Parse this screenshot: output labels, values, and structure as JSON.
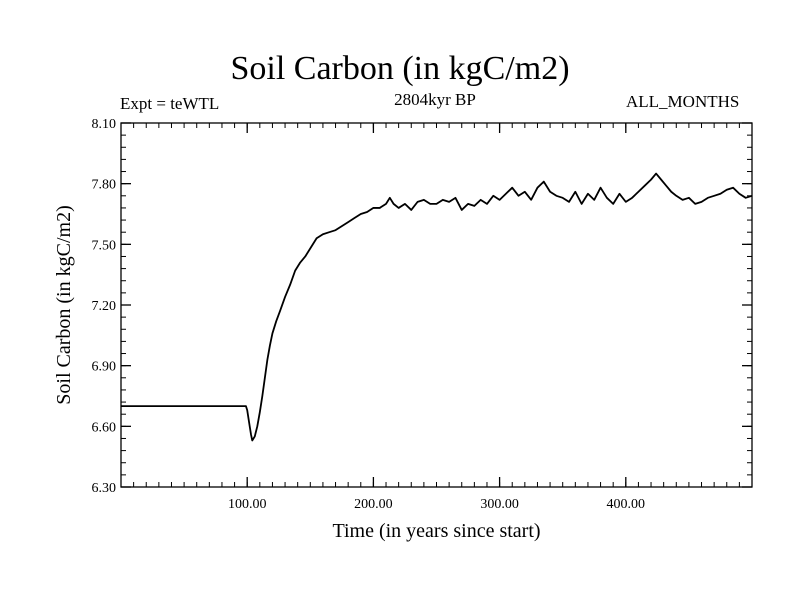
{
  "header": {
    "title": "Soil Carbon (in kgC/m2)",
    "subtitle": "2804kyr BP",
    "experiment": "Expt = teWTL",
    "period": "ALL_MONTHS"
  },
  "chart_data": {
    "type": "line",
    "title": "Soil Carbon (in kgC/m2)",
    "xlabel": "Time (in years since start)",
    "ylabel": "Soil Carbon (in kgC/m2)",
    "xlim": [
      0,
      500
    ],
    "ylim": [
      6.3,
      8.1
    ],
    "x_ticks": [
      100,
      200,
      300,
      400
    ],
    "x_tick_labels": [
      "100.00",
      "200.00",
      "300.00",
      "400.00"
    ],
    "y_ticks": [
      6.3,
      6.6,
      6.9,
      7.2,
      7.5,
      7.8,
      8.1
    ],
    "y_tick_labels": [
      "6.30",
      "6.60",
      "6.90",
      "7.20",
      "7.50",
      "7.80",
      "8.10"
    ],
    "grid": false,
    "series": [
      {
        "name": "Soil Carbon",
        "color": "#000000",
        "x": [
          0,
          20,
          40,
          60,
          80,
          99,
          100,
          101,
          102,
          103,
          104,
          106,
          108,
          110,
          112,
          114,
          116,
          118,
          120,
          123,
          126,
          130,
          134,
          138,
          142,
          146,
          150,
          155,
          160,
          165,
          170,
          175,
          180,
          185,
          190,
          195,
          200,
          205,
          210,
          213,
          216,
          220,
          225,
          230,
          235,
          240,
          245,
          250,
          255,
          260,
          265,
          270,
          275,
          280,
          285,
          290,
          295,
          300,
          305,
          310,
          315,
          320,
          325,
          330,
          335,
          340,
          345,
          350,
          355,
          360,
          365,
          370,
          375,
          380,
          385,
          390,
          395,
          400,
          405,
          410,
          415,
          420,
          424,
          428,
          432,
          436,
          440,
          445,
          450,
          455,
          460,
          465,
          470,
          475,
          480,
          485,
          490,
          495,
          500
        ],
        "values": [
          6.7,
          6.7,
          6.7,
          6.7,
          6.7,
          6.7,
          6.68,
          6.64,
          6.6,
          6.56,
          6.53,
          6.55,
          6.6,
          6.67,
          6.75,
          6.84,
          6.93,
          7.0,
          7.06,
          7.12,
          7.17,
          7.24,
          7.3,
          7.37,
          7.41,
          7.44,
          7.48,
          7.53,
          7.55,
          7.56,
          7.57,
          7.59,
          7.61,
          7.63,
          7.65,
          7.66,
          7.68,
          7.68,
          7.7,
          7.73,
          7.7,
          7.68,
          7.7,
          7.67,
          7.71,
          7.72,
          7.7,
          7.7,
          7.72,
          7.71,
          7.73,
          7.67,
          7.7,
          7.69,
          7.72,
          7.7,
          7.74,
          7.72,
          7.75,
          7.78,
          7.74,
          7.76,
          7.72,
          7.78,
          7.81,
          7.76,
          7.74,
          7.73,
          7.71,
          7.76,
          7.7,
          7.75,
          7.72,
          7.78,
          7.73,
          7.7,
          7.75,
          7.71,
          7.73,
          7.76,
          7.79,
          7.82,
          7.85,
          7.82,
          7.79,
          7.76,
          7.74,
          7.72,
          7.73,
          7.7,
          7.71,
          7.73,
          7.74,
          7.75,
          7.77,
          7.78,
          7.75,
          7.73,
          7.74
        ]
      }
    ]
  }
}
